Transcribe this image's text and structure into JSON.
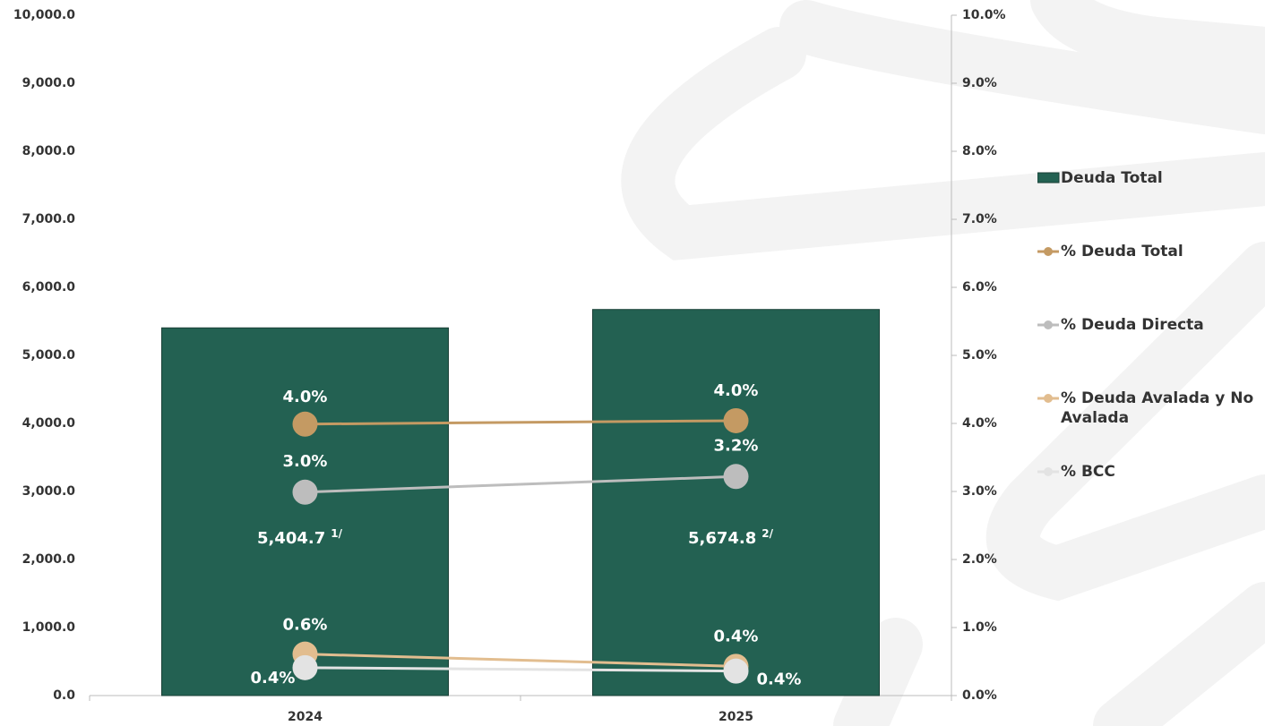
{
  "chart_data": {
    "type": "bar_line",
    "categories": [
      "2024",
      "2025"
    ],
    "series": [
      {
        "name": "Deuda Total",
        "type": "bar",
        "color": "#236152",
        "values": [
          5404.7,
          5674.8
        ],
        "value_labels": [
          "5,404.7",
          "5,674.8"
        ],
        "footnotes": [
          "1/",
          "2/"
        ]
      },
      {
        "name": "% Deuda Total",
        "type": "line",
        "axis": "y2",
        "color": "#c49a63",
        "values": [
          3.99,
          4.04
        ],
        "value_labels": [
          "4.0%",
          "4.0%"
        ]
      },
      {
        "name": "% Deuda Directa",
        "type": "line",
        "axis": "y2",
        "color": "#bdbdbd",
        "values": [
          2.99,
          3.22
        ],
        "value_labels": [
          "3.0%",
          "3.2%"
        ]
      },
      {
        "name": "% Deuda Avalada y No Avalada",
        "type": "line",
        "axis": "y2",
        "color": "#e2bd8f",
        "values": [
          0.61,
          0.43
        ],
        "value_labels": [
          "0.6%",
          "0.4%"
        ]
      },
      {
        "name": "% BCC",
        "type": "line",
        "axis": "y2",
        "color": "#e3e3e3",
        "values": [
          0.41,
          0.36
        ],
        "value_labels": [
          "0.4%",
          "0.4%"
        ]
      }
    ],
    "ylim": [
      0,
      10000
    ],
    "yticks": [
      {
        "value": 0,
        "label": "0.0"
      },
      {
        "value": 1000,
        "label": "1,000.0"
      },
      {
        "value": 2000,
        "label": "2,000.0"
      },
      {
        "value": 3000,
        "label": "3,000.0"
      },
      {
        "value": 4000,
        "label": "4,000.0"
      },
      {
        "value": 5000,
        "label": "5,000.0"
      },
      {
        "value": 6000,
        "label": "6,000.0"
      },
      {
        "value": 7000,
        "label": "7,000.0"
      },
      {
        "value": 8000,
        "label": "8,000.0"
      },
      {
        "value": 9000,
        "label": "9,000.0"
      },
      {
        "value": 10000,
        "label": "10,000.0"
      }
    ],
    "y2lim": [
      0,
      10
    ],
    "y2ticks": [
      {
        "value": 0,
        "label": "0.0%"
      },
      {
        "value": 1,
        "label": "1.0%"
      },
      {
        "value": 2,
        "label": "2.0%"
      },
      {
        "value": 3,
        "label": "3.0%"
      },
      {
        "value": 4,
        "label": "4.0%"
      },
      {
        "value": 5,
        "label": "5.0%"
      },
      {
        "value": 6,
        "label": "6.0%"
      },
      {
        "value": 7,
        "label": "7.0%"
      },
      {
        "value": 8,
        "label": "8.0%"
      },
      {
        "value": 9,
        "label": "9.0%"
      },
      {
        "value": 10,
        "label": "10.0%"
      }
    ],
    "legend": "right"
  }
}
